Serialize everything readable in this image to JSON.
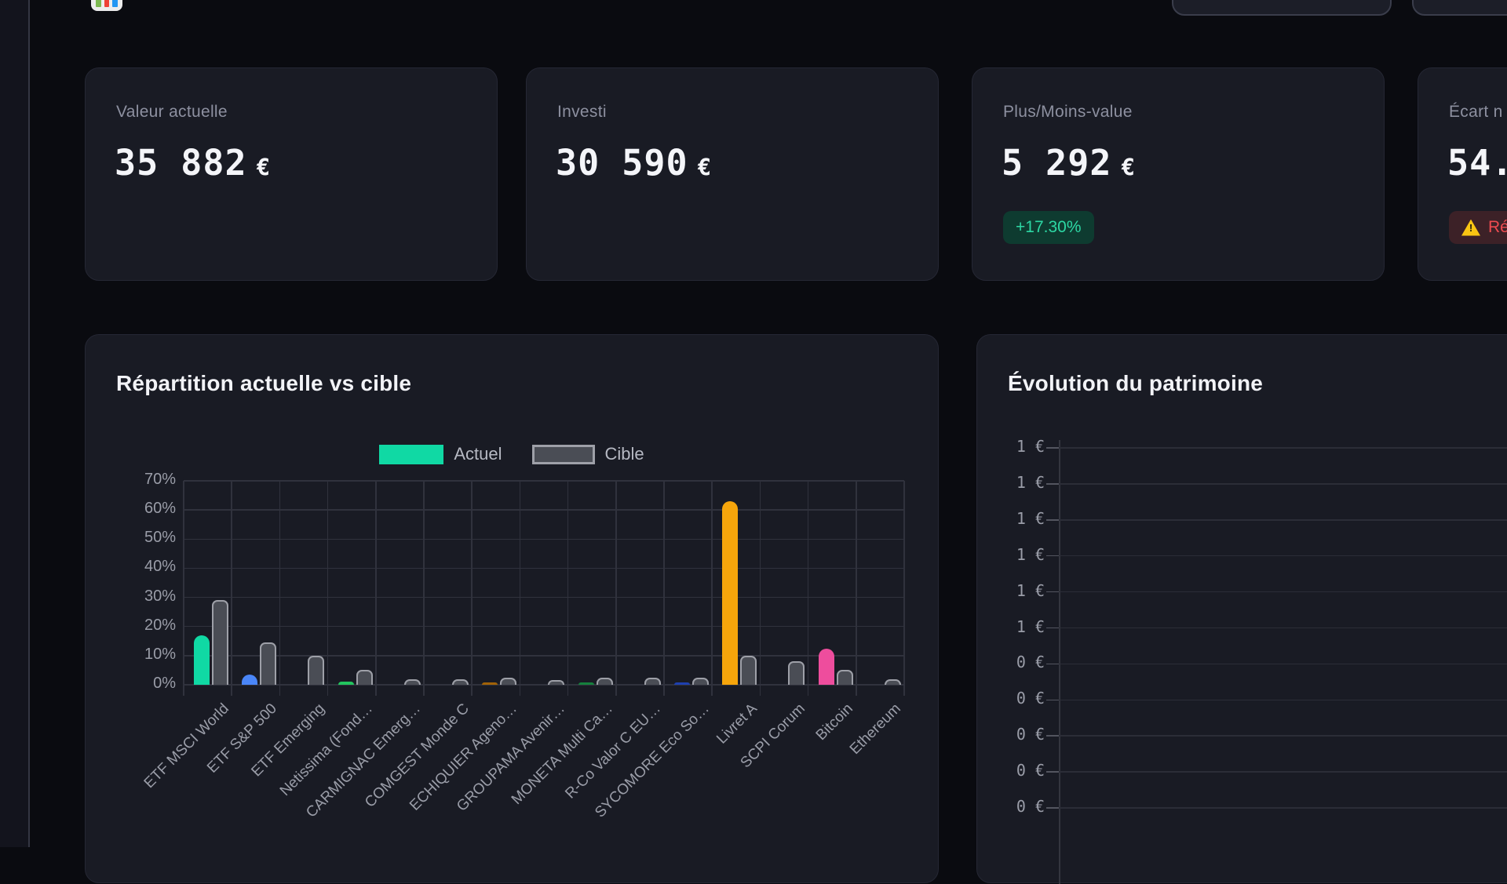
{
  "app": {
    "favicon": {
      "bar_colors": [
        "#7cb950",
        "#ef4136",
        "#2196f3"
      ]
    },
    "topbar_buttons": [
      {
        "id": "topbar-button-1"
      },
      {
        "id": "topbar-button-2"
      }
    ]
  },
  "stat_cards": [
    {
      "label": "Valeur actuelle",
      "value": "35 882",
      "unit": "€"
    },
    {
      "label": "Investi",
      "value": "30 590",
      "unit": "€"
    },
    {
      "label": "Plus/Moins-value",
      "value": "5 292",
      "unit": "€",
      "badge": {
        "text": "+17.30%",
        "type": "positive"
      }
    },
    {
      "label": "Écart n",
      "value": "54.",
      "badge": {
        "text": "Ré",
        "type": "warning",
        "icon": "warning-triangle"
      }
    }
  ],
  "charts": {
    "repartition": {
      "title": "Répartition actuelle vs cible",
      "legend": [
        {
          "label": "Actuel",
          "color": "#10d9a4",
          "style": "solid"
        },
        {
          "label": "Cible",
          "color": "#4a4d55",
          "border": "#9ea0a8",
          "style": "outlined"
        }
      ],
      "chart_data": {
        "type": "bar",
        "categories": [
          "ETF MSCI World",
          "ETF S&P 500",
          "ETF Emerging",
          "Netissima (Fond…",
          "CARMIGNAC Emerg…",
          "COMGEST Monde C",
          "ECHIQUIER Ageno…",
          "GROUPAMA Avenir…",
          "MONETA Multi Ca…",
          "R-Co Valor C EU…",
          "SYCOMORE Eco So…",
          "Livret A",
          "SCPI Corum",
          "Bitcoin",
          "Ethereum"
        ],
        "series": [
          {
            "name": "Actuel",
            "values": [
              17,
              3.5,
              0,
              1,
              0,
              0,
              0.5,
              0,
              0.5,
              0,
              0.5,
              63,
              0,
              12.5,
              0
            ],
            "colors": [
              "#10d9a4",
              "#4a86f8",
              "#10d9a4",
              "#22c55e",
              "#888888",
              "#888888",
              "#a16207",
              "#888888",
              "#15803d",
              "#888888",
              "#1e40af",
              "#f6a50b",
              "#888888",
              "#ee4d9d",
              "#888888"
            ]
          },
          {
            "name": "Cible",
            "values": [
              29,
              14.5,
              10,
              5,
              2,
              2,
              2.5,
              1.5,
              2.5,
              2.5,
              2.5,
              10,
              8,
              5,
              2
            ],
            "fill": "#4a4d55",
            "border": "#9ea0a8"
          }
        ],
        "ylim": [
          0,
          70
        ],
        "ytick_step": 10,
        "ytick_labels": [
          "0%",
          "10%",
          "20%",
          "30%",
          "40%",
          "50%",
          "60%",
          "70%"
        ],
        "grid": true,
        "legend_position": "top"
      }
    },
    "evolution": {
      "title": "Évolution du patrimoine",
      "chart_data": {
        "type": "line",
        "ytick_labels": [
          "1 €",
          "1 €",
          "1 €",
          "1 €",
          "1 €",
          "1 €",
          "0 €",
          "0 €",
          "0 €",
          "0 €",
          "0 €"
        ],
        "grid": true,
        "note": "plot area cut off at right edge of screen; only y-axis, ticks and gridlines visible"
      }
    }
  }
}
